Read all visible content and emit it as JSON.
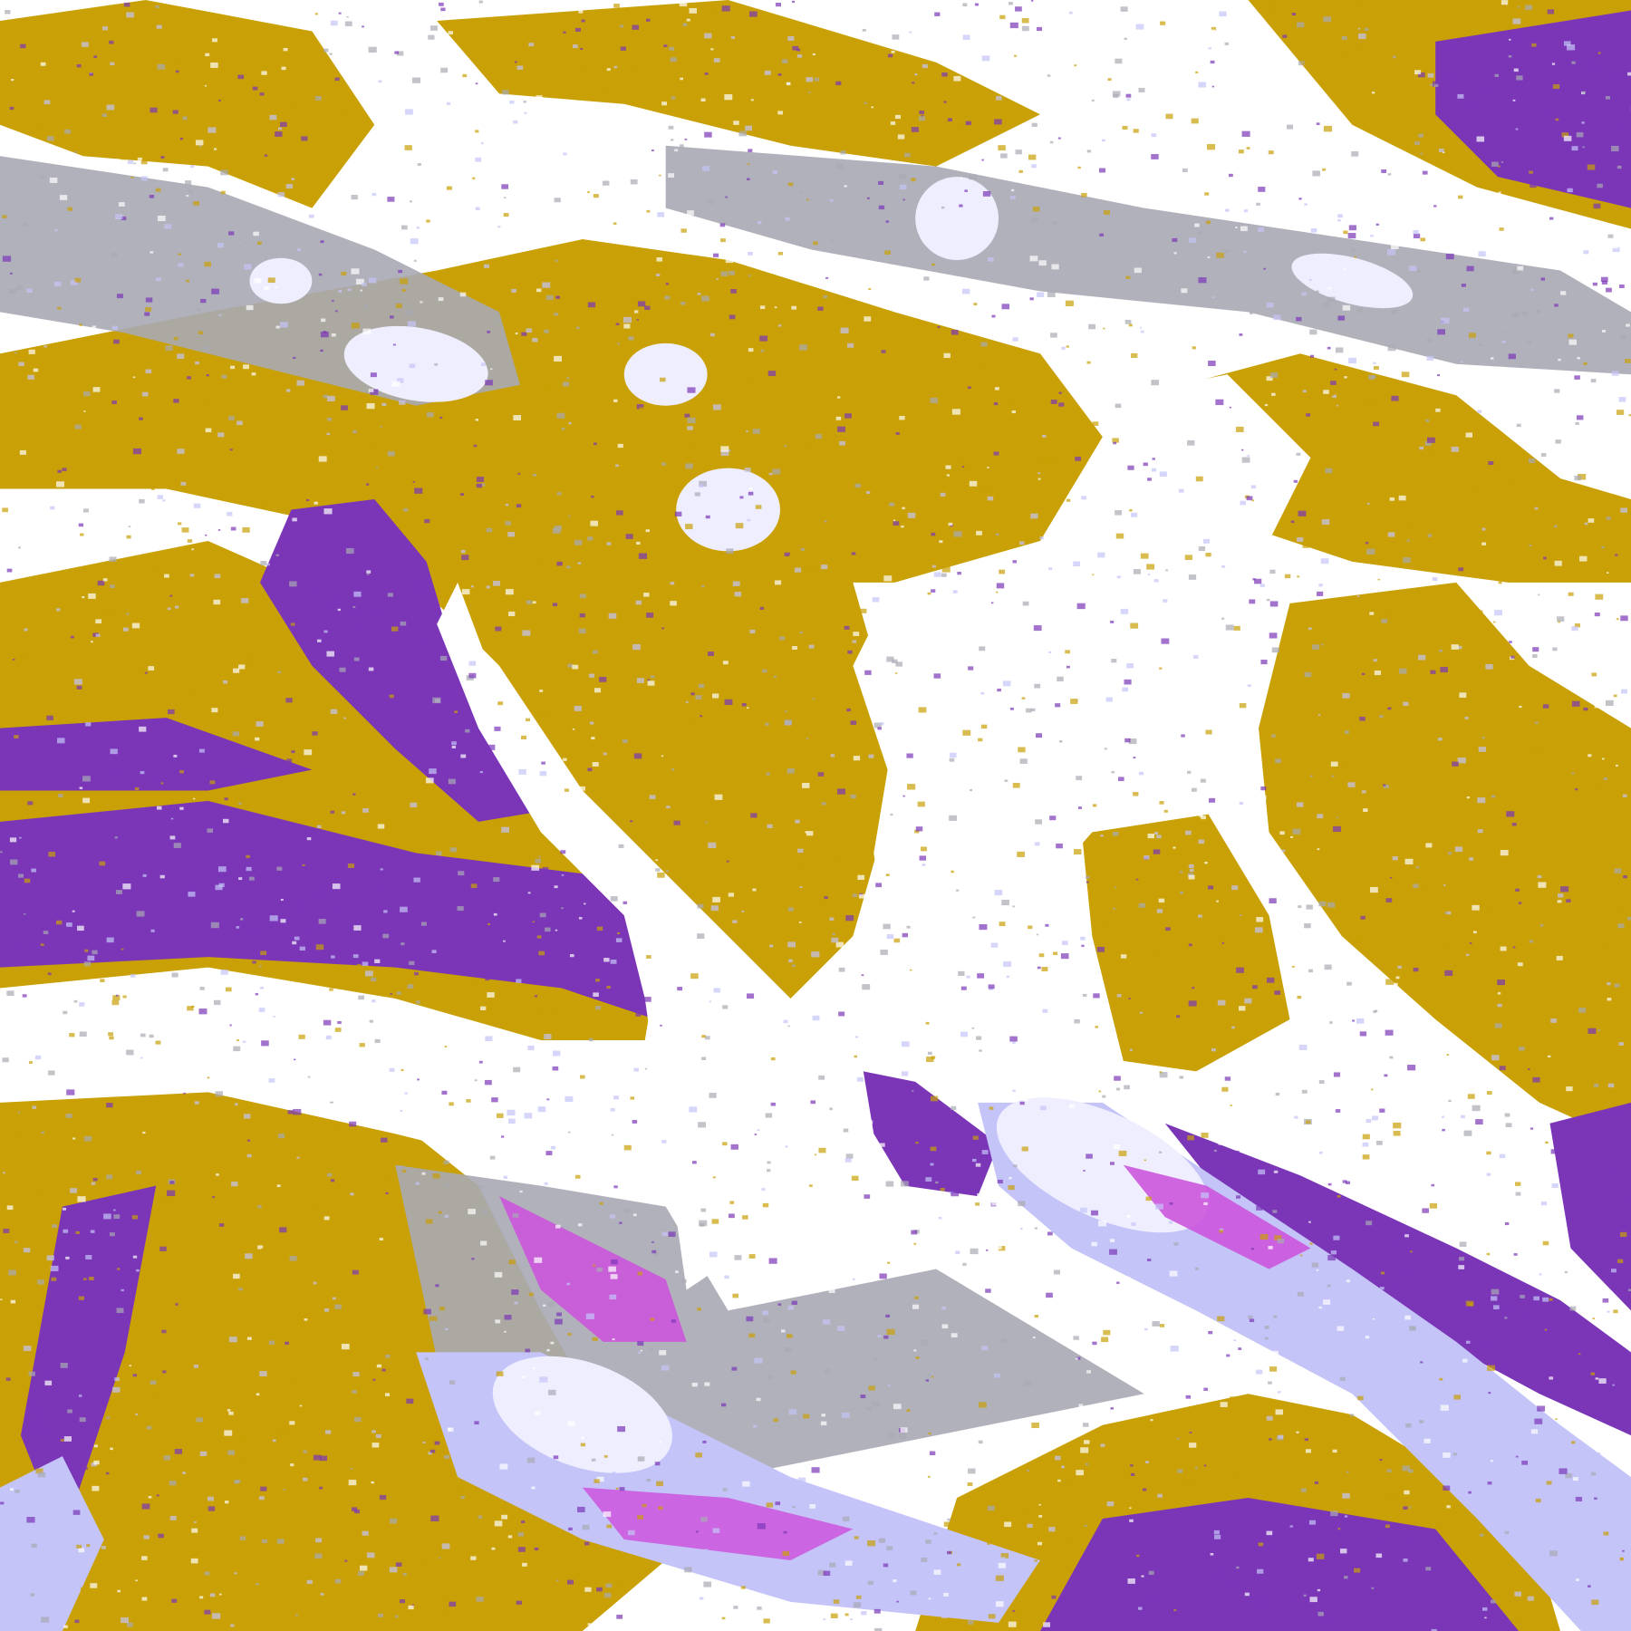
{
  "image": {
    "kind": "false-color satellite cloud classification",
    "colors": {
      "clear": "#ffffff",
      "gold": "#c9a005",
      "purple": "#7b36b8",
      "magenta": "#cc55dd",
      "lavender": "#c4c4f8",
      "pale": "#eeeeff",
      "gray": "#a9a9b4"
    }
  }
}
